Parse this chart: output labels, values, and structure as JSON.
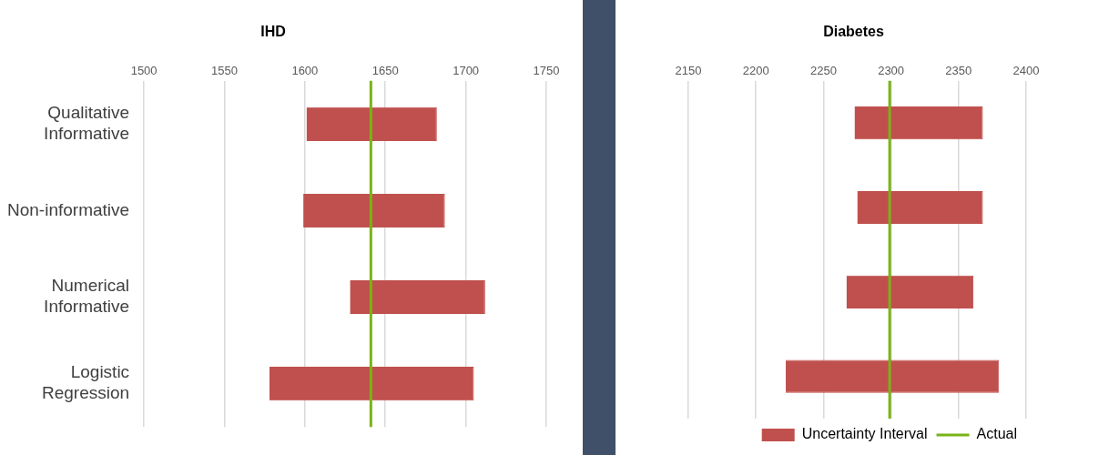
{
  "chart_data": [
    {
      "type": "bar",
      "title": "IHD",
      "orientation": "horizontal",
      "categories": [
        "Qualitative Informative",
        "Non-informative",
        "Numerical Informative",
        "Logistic Regression"
      ],
      "series": [
        {
          "color": "#c0504d",
          "base": [
            1601,
            1599,
            1628,
            1578
          ],
          "values": [
            81,
            88,
            84,
            127
          ]
        }
      ],
      "xlim": [
        1500,
        1750
      ],
      "xticks": [
        1500,
        1550,
        1600,
        1650,
        1700,
        1750
      ],
      "grid": "x",
      "legend": false,
      "ref_lines": [
        {
          "axis": "x",
          "value": 1641,
          "color": "#7ab317"
        }
      ]
    },
    {
      "type": "bar",
      "title": "Diabetes",
      "orientation": "horizontal",
      "categories": [
        null,
        null,
        null,
        null
      ],
      "series": [
        {
          "name": "Uncertainty Interval",
          "color": "#c0504d",
          "base": [
            2273,
            2275,
            2267,
            2222
          ],
          "values": [
            95,
            93,
            94,
            158
          ]
        }
      ],
      "xlim": [
        2150,
        2400
      ],
      "xticks": [
        2150,
        2200,
        2250,
        2300,
        2350,
        2400
      ],
      "grid": "x",
      "legend": "bottom",
      "tick_labels": "x",
      "ref_lines": [
        {
          "axis": "x",
          "value": 2299,
          "label": "Actual",
          "color": "#7ab317"
        }
      ]
    }
  ]
}
